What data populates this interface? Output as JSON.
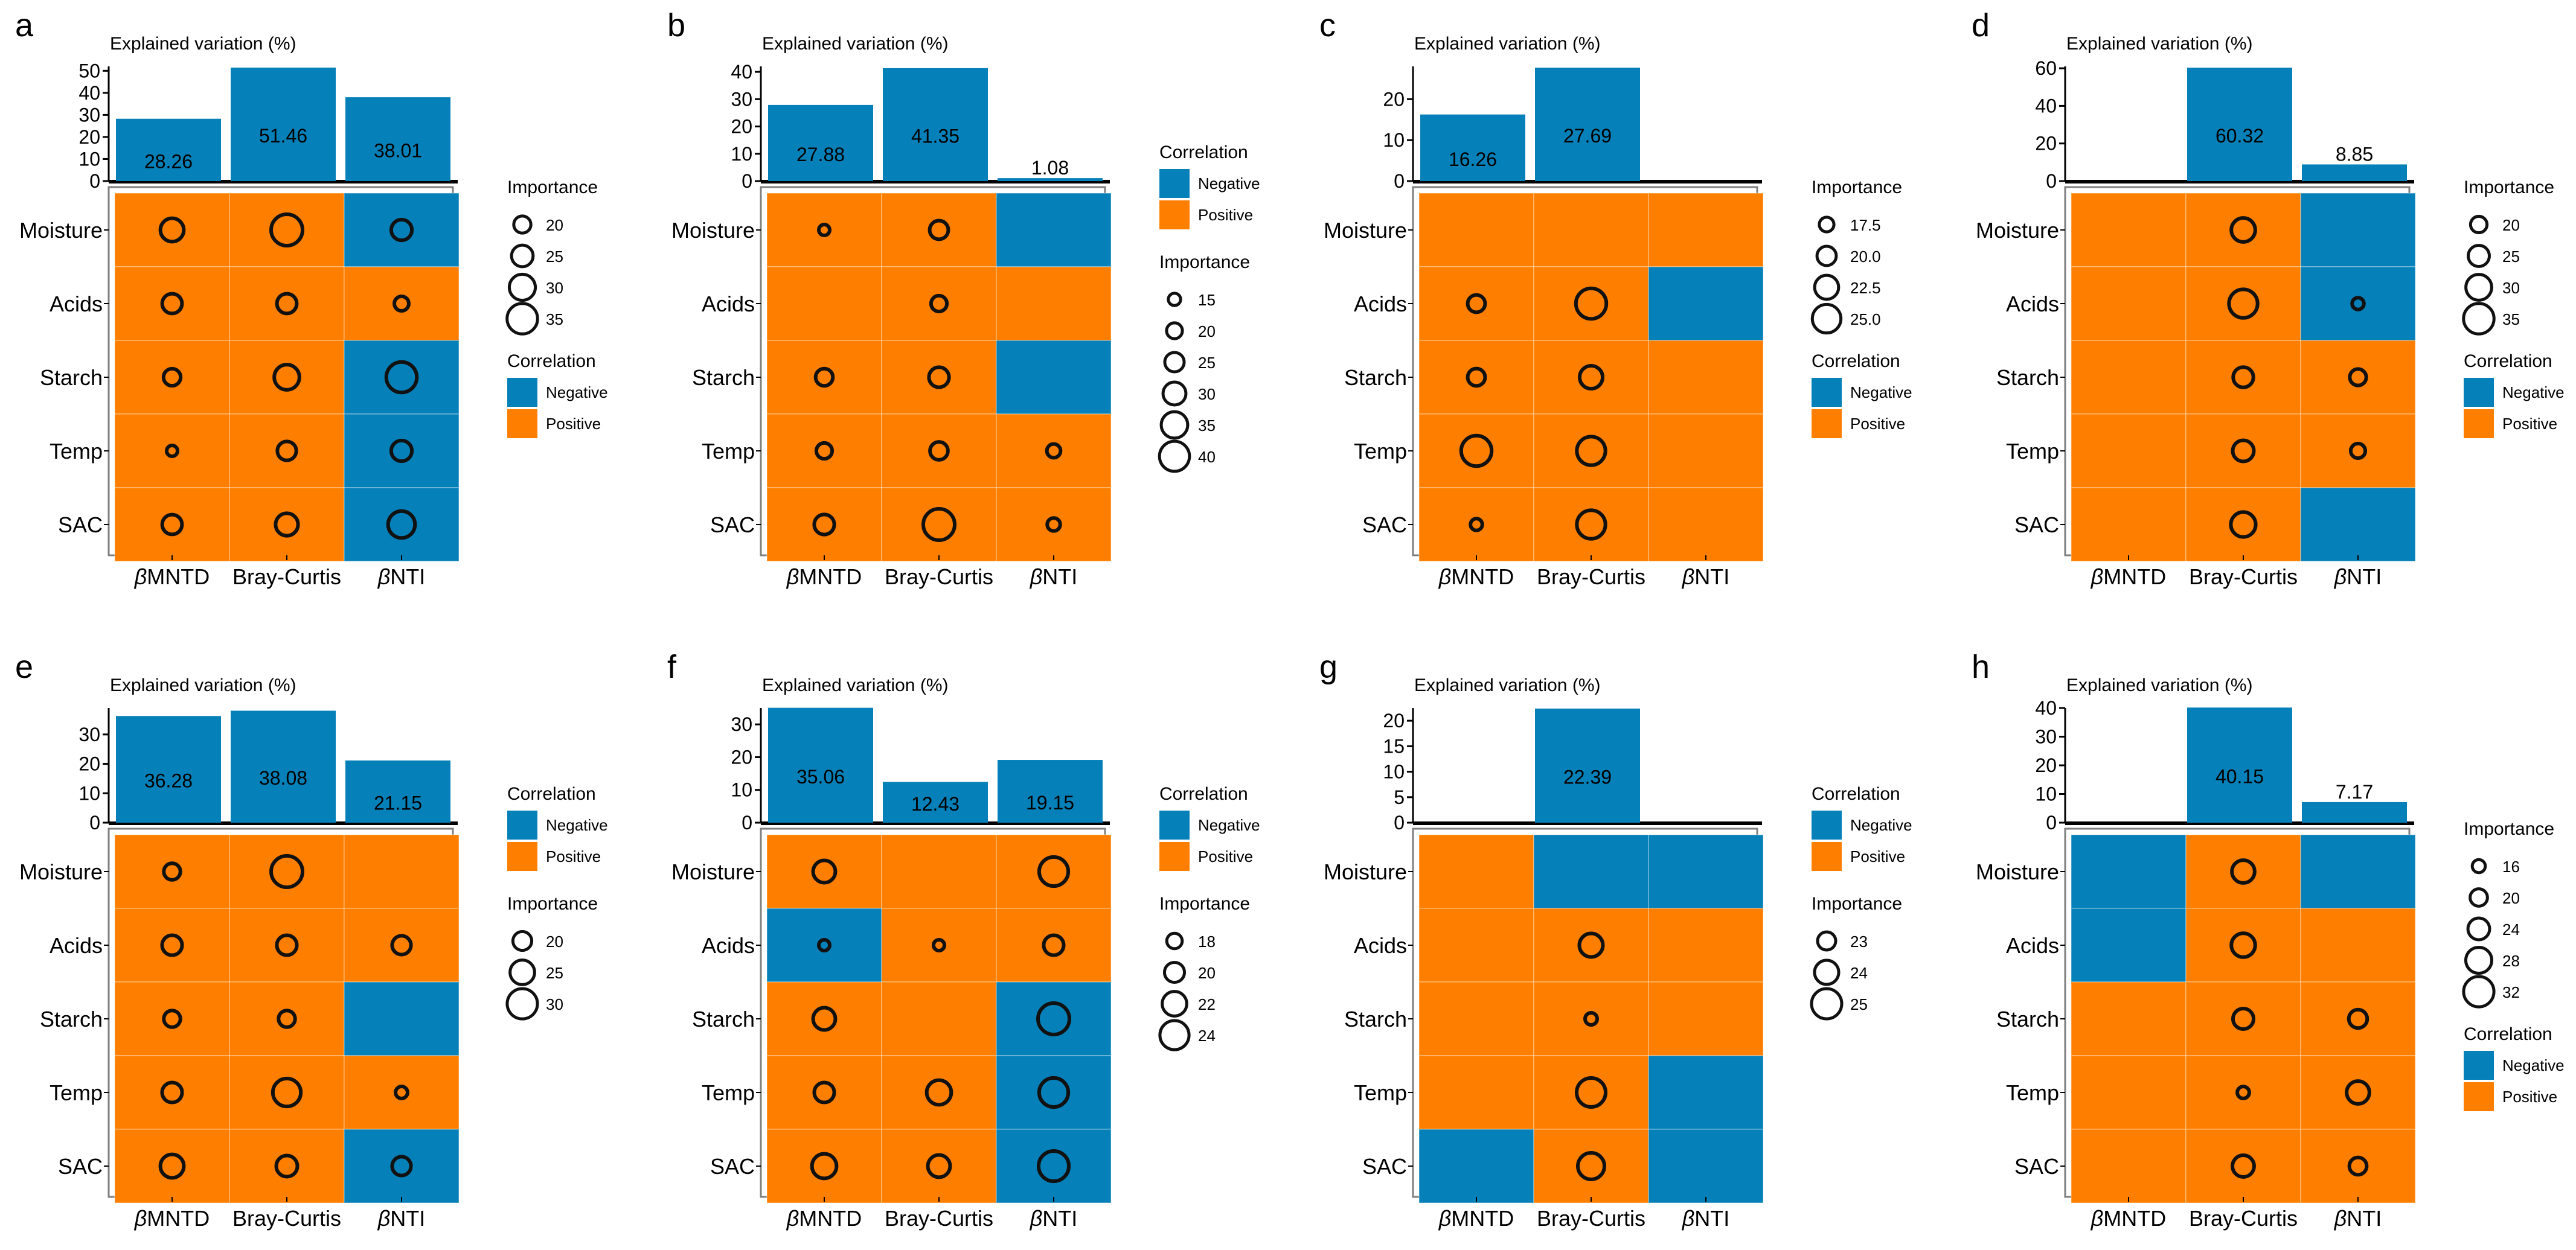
{
  "colors": {
    "negative": "#0680B8",
    "positive": "#FE7F00",
    "bar": "#0680B8",
    "grid": "#FFFFFF",
    "frame": "#7F7F7F",
    "circle": "#111111"
  },
  "chart_data": [
    {
      "type": "heatmap",
      "panel": "a",
      "title": "Explained variation (%)",
      "categories": [
        "βMNTD",
        "Bray-Curtis",
        "βNTI"
      ],
      "rows": [
        "Moisture",
        "Acids",
        "Starch",
        "Temp",
        "SAC"
      ],
      "bar_values": [
        28.26,
        51.46,
        38.01
      ],
      "bar_ylim": [
        0,
        52
      ],
      "bar_yticks": [
        0,
        10,
        20,
        30,
        40,
        50
      ],
      "correlation": [
        [
          "P",
          "P",
          "N"
        ],
        [
          "P",
          "P",
          "P"
        ],
        [
          "P",
          "P",
          "N"
        ],
        [
          "P",
          "P",
          "N"
        ],
        [
          "P",
          "P",
          "N"
        ]
      ],
      "importance": [
        [
          27,
          36,
          24
        ],
        [
          23,
          23,
          17
        ],
        [
          20,
          29,
          35
        ],
        [
          13,
          22,
          24
        ],
        [
          23,
          26,
          31
        ]
      ],
      "legend_order": [
        "importance",
        "correlation"
      ],
      "legend": {
        "importance_title": "Importance",
        "importance_labels": [
          "20",
          "25",
          "30",
          "35"
        ],
        "importance_values": [
          20,
          25,
          30,
          35
        ],
        "importance_range": [
          13,
          36
        ],
        "correlation_title": "Correlation",
        "correlation_labels": [
          "Negative",
          "Positive"
        ]
      }
    },
    {
      "type": "heatmap",
      "panel": "b",
      "title": "Explained variation (%)",
      "categories": [
        "βMNTD",
        "Bray-Curtis",
        "βNTI"
      ],
      "rows": [
        "Moisture",
        "Acids",
        "Starch",
        "Temp",
        "SAC"
      ],
      "bar_values": [
        27.88,
        41.35,
        1.08
      ],
      "bar_ylim": [
        0,
        42
      ],
      "bar_yticks": [
        0,
        10,
        20,
        30,
        40
      ],
      "correlation": [
        [
          "P",
          "P",
          "N"
        ],
        [
          "P",
          "P",
          "P"
        ],
        [
          "P",
          "P",
          "N"
        ],
        [
          "P",
          "P",
          "P"
        ],
        [
          "P",
          "P",
          "P"
        ]
      ],
      "importance": [
        [
          13,
          24,
          null
        ],
        [
          null,
          20,
          null
        ],
        [
          22,
          26,
          null
        ],
        [
          20,
          23,
          17
        ],
        [
          26,
          42,
          16
        ]
      ],
      "legend_order": [
        "correlation",
        "importance"
      ],
      "legend": {
        "importance_title": "Importance",
        "importance_labels": [
          "15",
          "20",
          "25",
          "30",
          "35",
          "40"
        ],
        "importance_values": [
          15,
          20,
          25,
          30,
          35,
          40
        ],
        "importance_range": [
          13,
          42
        ],
        "correlation_title": "Correlation",
        "correlation_labels": [
          "Negative",
          "Positive"
        ]
      }
    },
    {
      "type": "heatmap",
      "panel": "c",
      "title": "Explained variation (%)",
      "categories": [
        "βMNTD",
        "Bray-Curtis",
        "βNTI"
      ],
      "rows": [
        "Moisture",
        "Acids",
        "Starch",
        "Temp",
        "SAC"
      ],
      "bar_values": [
        16.26,
        27.69,
        null
      ],
      "bar_ylim": [
        0,
        28
      ],
      "bar_yticks": [
        0,
        10,
        20
      ],
      "correlation": [
        [
          "P",
          "P",
          "P"
        ],
        [
          "P",
          "P",
          "N"
        ],
        [
          "P",
          "P",
          "P"
        ],
        [
          "P",
          "P",
          "P"
        ],
        [
          "P",
          "P",
          "P"
        ]
      ],
      "importance": [
        [
          null,
          null,
          null
        ],
        [
          19,
          26,
          null
        ],
        [
          19,
          22,
          null
        ],
        [
          26,
          25,
          null
        ],
        [
          16,
          25,
          null
        ]
      ],
      "legend_order": [
        "importance",
        "correlation"
      ],
      "legend": {
        "importance_title": "Importance",
        "importance_labels": [
          "17.5",
          "20.0",
          "22.5",
          "25.0"
        ],
        "importance_values": [
          17.5,
          20.0,
          22.5,
          25.0
        ],
        "importance_range": [
          15.5,
          26.5
        ],
        "correlation_title": "Correlation",
        "correlation_labels": [
          "Negative",
          "Positive"
        ]
      }
    },
    {
      "type": "heatmap",
      "panel": "d",
      "title": "Explained variation (%)",
      "categories": [
        "βMNTD",
        "Bray-Curtis",
        "βNTI"
      ],
      "rows": [
        "Moisture",
        "Acids",
        "Starch",
        "Temp",
        "SAC"
      ],
      "bar_values": [
        null,
        60.32,
        8.85
      ],
      "bar_ylim": [
        0,
        61
      ],
      "bar_yticks": [
        0,
        20,
        40,
        60
      ],
      "correlation": [
        [
          "P",
          "P",
          "N"
        ],
        [
          "P",
          "P",
          "N"
        ],
        [
          "P",
          "P",
          "P"
        ],
        [
          "P",
          "P",
          "P"
        ],
        [
          "P",
          "P",
          "N"
        ]
      ],
      "importance": [
        [
          null,
          28,
          null
        ],
        [
          null,
          33,
          15
        ],
        [
          null,
          24,
          20
        ],
        [
          null,
          25,
          18
        ],
        [
          null,
          29,
          null
        ]
      ],
      "legend_order": [
        "importance",
        "correlation"
      ],
      "legend": {
        "importance_title": "Importance",
        "importance_labels": [
          "20",
          "25",
          "30",
          "35"
        ],
        "importance_values": [
          20,
          25,
          30,
          35
        ],
        "importance_range": [
          14,
          36
        ],
        "correlation_title": "Correlation",
        "correlation_labels": [
          "Negative",
          "Positive"
        ]
      }
    },
    {
      "type": "heatmap",
      "panel": "e",
      "title": "Explained variation (%)",
      "categories": [
        "βMNTD",
        "Bray-Curtis",
        "βNTI"
      ],
      "rows": [
        "Moisture",
        "Acids",
        "Starch",
        "Temp",
        "SAC"
      ],
      "bar_values": [
        36.28,
        38.08,
        21.15
      ],
      "bar_ylim": [
        0,
        39
      ],
      "bar_yticks": [
        0,
        10,
        20,
        30
      ],
      "correlation": [
        [
          "P",
          "P",
          "P"
        ],
        [
          "P",
          "P",
          "P"
        ],
        [
          "P",
          "P",
          "N"
        ],
        [
          "P",
          "P",
          "P"
        ],
        [
          "P",
          "P",
          "N"
        ]
      ],
      "importance": [
        [
          18,
          31,
          null
        ],
        [
          21,
          21,
          20
        ],
        [
          18,
          18,
          null
        ],
        [
          21,
          28,
          14
        ],
        [
          24,
          22,
          20
        ]
      ],
      "legend_order": [
        "correlation",
        "importance"
      ],
      "legend": {
        "importance_title": "Importance",
        "importance_labels": [
          "20",
          "25",
          "30"
        ],
        "importance_values": [
          20,
          25,
          30
        ],
        "importance_range": [
          13,
          31
        ],
        "correlation_title": "Correlation",
        "correlation_labels": [
          "Negative",
          "Positive"
        ]
      }
    },
    {
      "type": "heatmap",
      "panel": "f",
      "title": "Explained variation (%)",
      "categories": [
        "βMNTD",
        "Bray-Curtis",
        "βNTI"
      ],
      "rows": [
        "Moisture",
        "Acids",
        "Starch",
        "Temp",
        "SAC"
      ],
      "bar_values": [
        35.06,
        12.43,
        19.15
      ],
      "bar_ylim": [
        0,
        35
      ],
      "bar_yticks": [
        0,
        10,
        20,
        30
      ],
      "correlation": [
        [
          "P",
          "P",
          "P"
        ],
        [
          "N",
          "P",
          "P"
        ],
        [
          "P",
          "P",
          "N"
        ],
        [
          "P",
          "P",
          "N"
        ],
        [
          "P",
          "P",
          "N"
        ]
      ],
      "importance": [
        [
          21,
          null,
          24
        ],
        [
          16,
          16,
          20
        ],
        [
          21,
          null,
          25
        ],
        [
          20,
          22,
          24
        ],
        [
          22,
          21,
          24.5
        ]
      ],
      "legend_order": [
        "correlation",
        "importance"
      ],
      "legend": {
        "importance_title": "Importance",
        "importance_labels": [
          "18",
          "20",
          "22",
          "24"
        ],
        "importance_values": [
          18,
          20,
          22,
          24
        ],
        "importance_range": [
          16,
          25
        ],
        "correlation_title": "Correlation",
        "correlation_labels": [
          "Negative",
          "Positive"
        ]
      }
    },
    {
      "type": "heatmap",
      "panel": "g",
      "title": "Explained variation (%)",
      "categories": [
        "βMNTD",
        "Bray-Curtis",
        "βNTI"
      ],
      "rows": [
        "Moisture",
        "Acids",
        "Starch",
        "Temp",
        "SAC"
      ],
      "bar_values": [
        null,
        22.39,
        null
      ],
      "bar_ylim": [
        0,
        22.5
      ],
      "bar_yticks": [
        0,
        5,
        10,
        15,
        20
      ],
      "correlation": [
        [
          "P",
          "N",
          "N"
        ],
        [
          "P",
          "P",
          "P"
        ],
        [
          "P",
          "P",
          "P"
        ],
        [
          "P",
          "P",
          "N"
        ],
        [
          "N",
          "P",
          "N"
        ]
      ],
      "importance": [
        [
          null,
          null,
          null
        ],
        [
          null,
          23.9,
          null
        ],
        [
          null,
          22,
          null
        ],
        [
          null,
          24.8,
          null
        ],
        [
          null,
          24.4,
          null
        ]
      ],
      "legend_order": [
        "correlation",
        "importance"
      ],
      "legend": {
        "importance_title": "Importance",
        "importance_labels": [
          "23",
          "24",
          "25"
        ],
        "importance_values": [
          23,
          24,
          25
        ],
        "importance_range": [
          21.8,
          25.2
        ],
        "correlation_title": "Correlation",
        "correlation_labels": [
          "Negative",
          "Positive"
        ]
      }
    },
    {
      "type": "heatmap",
      "panel": "h",
      "title": "Explained variation (%)",
      "categories": [
        "βMNTD",
        "Bray-Curtis",
        "βNTI"
      ],
      "rows": [
        "Moisture",
        "Acids",
        "Starch",
        "Temp",
        "SAC"
      ],
      "bar_values": [
        null,
        40.15,
        7.17
      ],
      "bar_ylim": [
        0,
        40
      ],
      "bar_yticks": [
        0,
        10,
        20,
        30,
        40
      ],
      "correlation": [
        [
          "N",
          "P",
          "N"
        ],
        [
          "N",
          "P",
          "P"
        ],
        [
          "P",
          "P",
          "P"
        ],
        [
          "P",
          "P",
          "P"
        ],
        [
          "P",
          "P",
          "P"
        ]
      ],
      "importance": [
        [
          null,
          25,
          null
        ],
        [
          null,
          26,
          null
        ],
        [
          null,
          23,
          21
        ],
        [
          null,
          15,
          25
        ],
        [
          null,
          24,
          20
        ]
      ],
      "legend_order": [
        "importance",
        "correlation"
      ],
      "legend": {
        "importance_title": "Importance",
        "importance_labels": [
          "16",
          "20",
          "24",
          "28",
          "32"
        ],
        "importance_values": [
          16,
          20,
          24,
          28,
          32
        ],
        "importance_range": [
          14,
          33
        ],
        "correlation_title": "Correlation",
        "correlation_labels": [
          "Negative",
          "Positive"
        ]
      }
    }
  ]
}
